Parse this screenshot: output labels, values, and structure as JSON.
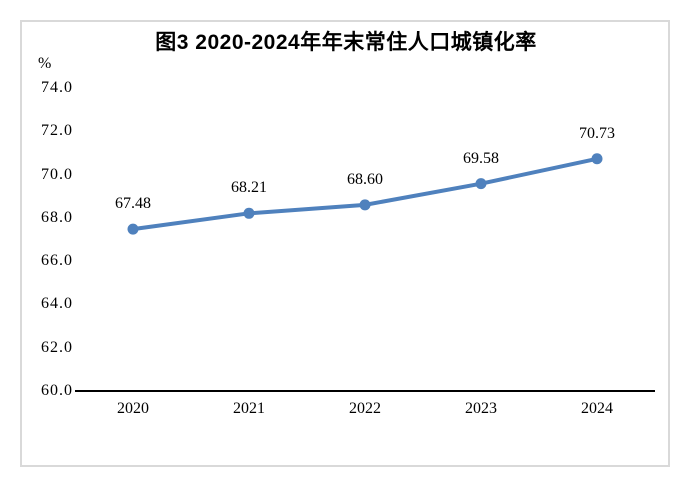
{
  "figure": {
    "title": "图3 2020-2024年年末常住人口城镇化率",
    "unit_label": "%"
  },
  "chart_data": {
    "type": "line",
    "title": "图3 2020-2024年年末常住人口城镇化率",
    "ylabel": "%",
    "xlabel": "",
    "categories": [
      "2020",
      "2021",
      "2022",
      "2023",
      "2024"
    ],
    "values": [
      67.48,
      68.21,
      68.6,
      69.58,
      70.73
    ],
    "data_labels": [
      "67.48",
      "68.21",
      "68.60",
      "69.58",
      "70.73"
    ],
    "ylim": [
      60.0,
      74.0
    ],
    "ytick_step": 2.0,
    "ytick_labels": [
      "60.0",
      "62.0",
      "64.0",
      "66.0",
      "68.0",
      "70.0",
      "72.0",
      "74.0"
    ],
    "grid": false,
    "legend": "none",
    "line_color": "#4F81BD",
    "marker_color": "#4F81BD",
    "axis_color": "#000000",
    "frame_color": "#D9D9D9"
  }
}
